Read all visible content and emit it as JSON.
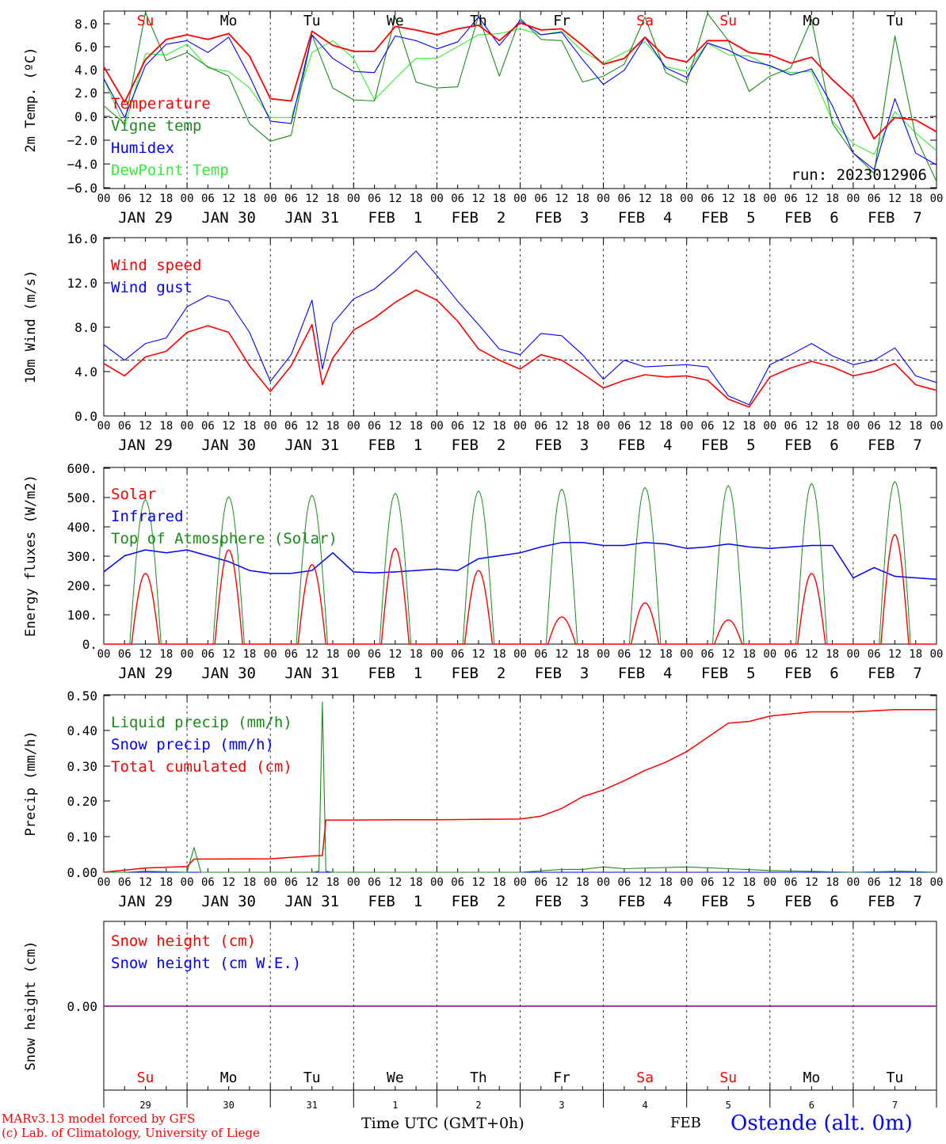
{
  "run_label": "run: 2023012906",
  "model_credit": "MARv3.13 model forced by GFS",
  "lab_credit": "(c) Lab. of Climatology, University of Liege",
  "time_axis_label": "Time UTC (GMT+0h)",
  "month_label": "FEB",
  "station_label": "Ostende (alt. 0m)",
  "hour_ticks": [
    "00",
    "06",
    "12",
    "18"
  ],
  "date_labels": [
    "JAN 29",
    "JAN 30",
    "JAN 31",
    "FEB  1",
    "FEB  2",
    "FEB  3",
    "FEB  4",
    "FEB  5",
    "FEB  6",
    "FEB  7"
  ],
  "day_names": [
    "Su",
    "Mo",
    "Tu",
    "We",
    "Th",
    "Fr",
    "Sa",
    "Su",
    "Mo",
    "Tu"
  ],
  "day_numbers": [
    "29",
    "30",
    "31",
    "1",
    "2",
    "3",
    "4",
    "5",
    "6",
    "7"
  ],
  "colors": {
    "red": "#ff0000",
    "green": "#1a8a1a",
    "blue": "#0000ff",
    "light_green": "#33ee33",
    "purple": "#800080",
    "weekend": "#ff0000",
    "weekday": "#000000"
  },
  "chart_data": [
    {
      "type": "line",
      "ylabel": "2m Temp. (ºC)",
      "ylim": [
        -6,
        9
      ],
      "yticks": [
        "8.0",
        "6.0",
        "4.0",
        "2.0",
        "0.0",
        "−2.0",
        "−4.0",
        "−6.0"
      ],
      "xlim_hours": [
        0,
        240
      ],
      "ref_line": 0,
      "series": [
        {
          "name": "Temperature",
          "color": "#ff0000",
          "x": [
            0,
            6,
            12,
            18,
            24,
            30,
            36,
            42,
            48,
            54,
            60,
            66,
            72,
            78,
            84,
            90,
            96,
            102,
            108,
            114,
            120,
            126,
            132,
            138,
            144,
            150,
            156,
            162,
            168,
            174,
            180,
            186,
            192,
            198,
            204,
            210,
            216,
            222,
            228,
            234,
            240
          ],
          "y": [
            4.3,
            1.3,
            4.9,
            6.6,
            7.0,
            6.6,
            7.1,
            5.2,
            1.6,
            1.4,
            7.3,
            6.1,
            5.6,
            5.6,
            7.7,
            7.4,
            7.0,
            7.5,
            7.8,
            6.5,
            8.0,
            7.4,
            7.5,
            6.1,
            4.5,
            5.0,
            6.8,
            5.1,
            4.7,
            6.5,
            6.5,
            5.5,
            5.3,
            4.6,
            5.1,
            3.2,
            1.6,
            -1.8,
            0.0,
            -0.2,
            -1.2
          ]
        },
        {
          "name": "Vigne temp",
          "color": "#1a8a1a",
          "x": [
            0,
            6,
            12,
            18,
            24,
            30,
            36,
            42,
            48,
            54,
            60,
            66,
            72,
            78,
            84,
            90,
            96,
            102,
            108,
            114,
            120,
            126,
            132,
            138,
            144,
            150,
            156,
            162,
            168,
            174,
            180,
            186,
            192,
            198,
            204,
            210,
            216,
            222,
            228,
            234,
            240
          ],
          "y": [
            1.0,
            -0.5,
            8.9,
            4.8,
            5.5,
            4.3,
            3.5,
            -0.5,
            -2.0,
            -1.5,
            7.0,
            2.5,
            1.5,
            1.4,
            8.5,
            3.0,
            2.5,
            2.6,
            8.6,
            3.5,
            8.4,
            6.6,
            6.5,
            3.0,
            3.5,
            4.5,
            8.5,
            3.8,
            2.9,
            8.8,
            6.5,
            2.2,
            3.5,
            4.2,
            8.3,
            -0.5,
            -3.0,
            -4.7,
            6.9,
            -1.6,
            -5.4
          ]
        },
        {
          "name": "Humidex",
          "color": "#0000ff",
          "x": [
            0,
            6,
            12,
            18,
            24,
            30,
            36,
            42,
            48,
            54,
            60,
            66,
            72,
            78,
            84,
            90,
            96,
            102,
            108,
            114,
            120,
            126,
            132,
            138,
            144,
            150,
            156,
            162,
            168,
            174,
            180,
            186,
            192,
            198,
            204,
            210,
            216,
            222,
            228,
            234,
            240
          ],
          "y": [
            3.3,
            0.0,
            4.4,
            6.2,
            6.5,
            5.5,
            6.8,
            3.5,
            -0.3,
            -0.5,
            7.0,
            5.0,
            3.9,
            3.8,
            6.9,
            6.5,
            5.8,
            6.4,
            8.5,
            6.1,
            8.2,
            7.0,
            7.2,
            4.9,
            2.8,
            4.0,
            6.8,
            4.2,
            3.4,
            6.3,
            5.7,
            4.8,
            4.4,
            3.6,
            4.1,
            1.0,
            -3.0,
            -4.4,
            1.6,
            -3.0,
            -4.0
          ]
        },
        {
          "name": "DewPoint Temp",
          "color": "#33ee33",
          "x": [
            0,
            6,
            12,
            18,
            24,
            30,
            36,
            42,
            48,
            54,
            60,
            66,
            72,
            78,
            84,
            90,
            96,
            102,
            108,
            114,
            120,
            126,
            132,
            138,
            144,
            150,
            156,
            162,
            168,
            174,
            180,
            186,
            192,
            198,
            204,
            210,
            216,
            222,
            228,
            234,
            240
          ],
          "y": [
            3.3,
            -0.8,
            5.4,
            5.3,
            6.2,
            4.2,
            3.9,
            2.5,
            0.0,
            0.0,
            5.5,
            6.5,
            5.0,
            1.5,
            3.3,
            5.0,
            5.0,
            6.0,
            7.0,
            7.1,
            7.5,
            7.0,
            7.3,
            5.6,
            4.6,
            5.5,
            6.4,
            4.3,
            3.9,
            6.3,
            5.3,
            5.2,
            4.3,
            3.8,
            3.9,
            -0.3,
            -2.2,
            -3.1,
            0.5,
            -1.3,
            -2.8
          ]
        }
      ]
    },
    {
      "type": "line",
      "ylabel": "10m Wind (m/s)",
      "ylim": [
        0,
        16
      ],
      "yticks": [
        "16.0",
        "12.0",
        "8.0",
        "4.0",
        "0.0"
      ],
      "xlim_hours": [
        0,
        240
      ],
      "ref_line": 5,
      "series": [
        {
          "name": "Wind speed",
          "color": "#ff0000",
          "x": [
            0,
            6,
            12,
            18,
            24,
            30,
            36,
            42,
            48,
            54,
            60,
            63,
            66,
            72,
            78,
            84,
            90,
            96,
            102,
            108,
            114,
            120,
            126,
            132,
            138,
            144,
            150,
            156,
            162,
            168,
            174,
            180,
            186,
            192,
            198,
            204,
            210,
            216,
            222,
            228,
            234,
            240
          ],
          "y": [
            4.7,
            3.6,
            5.3,
            5.8,
            7.5,
            8.1,
            7.5,
            4.5,
            2.2,
            4.5,
            8.2,
            2.8,
            5.2,
            7.7,
            8.8,
            10.2,
            11.3,
            10.4,
            8.5,
            6.0,
            5.0,
            4.2,
            5.5,
            5.0,
            3.8,
            2.5,
            3.2,
            3.7,
            3.5,
            3.6,
            3.2,
            1.5,
            0.8,
            3.5,
            4.3,
            4.9,
            4.4,
            3.6,
            4.0,
            4.7,
            2.8,
            2.3
          ]
        },
        {
          "name": "Wind gust",
          "color": "#0000ff",
          "x": [
            0,
            6,
            12,
            18,
            24,
            30,
            36,
            42,
            48,
            54,
            60,
            63,
            66,
            72,
            78,
            84,
            90,
            96,
            102,
            108,
            114,
            120,
            126,
            132,
            138,
            144,
            150,
            156,
            162,
            168,
            174,
            180,
            186,
            192,
            198,
            204,
            210,
            216,
            222,
            228,
            234,
            240
          ],
          "y": [
            6.4,
            5.0,
            6.5,
            7.0,
            9.8,
            10.8,
            10.3,
            7.5,
            3.1,
            5.5,
            10.4,
            4.2,
            8.3,
            10.5,
            11.4,
            13.0,
            14.8,
            12.6,
            10.3,
            8.2,
            6.0,
            5.5,
            7.4,
            7.2,
            5.5,
            3.3,
            5.0,
            4.4,
            4.5,
            4.6,
            4.4,
            1.8,
            1.0,
            4.6,
            5.5,
            6.5,
            5.4,
            4.6,
            5.0,
            6.1,
            3.6,
            3.0
          ]
        }
      ]
    },
    {
      "type": "line",
      "ylabel": "Energy fluxes (W/m2)",
      "ylim": [
        0,
        600
      ],
      "yticks": [
        "600.",
        "500.",
        "400.",
        "300.",
        "200.",
        "100.",
        "0."
      ],
      "xlim_hours": [
        0,
        240
      ],
      "daily_peaks": {
        "Top of Atmosphere (Solar)": [
          490,
          500,
          505,
          512,
          520,
          526,
          532,
          538,
          545,
          552
        ],
        "Solar": [
          240,
          320,
          270,
          325,
          250,
          92,
          140,
          82,
          240,
          372
        ]
      },
      "series": [
        {
          "name": "Solar",
          "color": "#ff0000"
        },
        {
          "name": "Infrared",
          "color": "#0000ff",
          "x": [
            0,
            6,
            12,
            18,
            24,
            30,
            36,
            42,
            48,
            54,
            60,
            66,
            72,
            78,
            84,
            90,
            96,
            102,
            108,
            114,
            120,
            126,
            132,
            138,
            144,
            150,
            156,
            162,
            168,
            174,
            180,
            186,
            192,
            198,
            204,
            210,
            216,
            222,
            228,
            234,
            240
          ],
          "y": [
            245,
            300,
            320,
            310,
            320,
            300,
            280,
            250,
            240,
            240,
            250,
            310,
            245,
            242,
            245,
            250,
            255,
            250,
            290,
            300,
            310,
            330,
            345,
            345,
            335,
            335,
            345,
            340,
            325,
            330,
            340,
            330,
            325,
            330,
            335,
            335,
            225,
            260,
            230,
            225,
            220
          ]
        },
        {
          "name": "Top of Atmosphere (Solar)",
          "color": "#1a8a1a"
        }
      ]
    },
    {
      "type": "line",
      "ylabel": "Precip (mm/h)",
      "ylim": [
        0,
        0.5
      ],
      "yticks": [
        "0.50",
        "0.40",
        "0.30",
        "0.20",
        "0.10",
        "0.00"
      ],
      "xlim_hours": [
        0,
        240
      ],
      "series": [
        {
          "name": "Liquid precip (mm/h)",
          "color": "#1a8a1a",
          "x": [
            0,
            6,
            12,
            24,
            26,
            28,
            30,
            48,
            60,
            62,
            63,
            64,
            66,
            120,
            132,
            138,
            144,
            150,
            168,
            180,
            192,
            216,
            230,
            240
          ],
          "y": [
            0.0,
            0.0,
            0.003,
            0.0,
            0.07,
            0.0,
            0.0,
            0.0,
            0.0,
            0.003,
            0.48,
            0.003,
            0.0,
            0.0,
            0.008,
            0.008,
            0.015,
            0.01,
            0.015,
            0.01,
            0.005,
            0.0,
            0.003,
            0.0
          ]
        },
        {
          "name": "Snow precip (mm/h)",
          "color": "#0000ff",
          "x": [
            0,
            240
          ],
          "y": [
            0,
            0
          ]
        },
        {
          "name": "Total cumulated (cm)",
          "color": "#ff0000",
          "x": [
            0,
            12,
            24,
            26,
            48,
            60,
            63,
            64,
            72,
            84,
            96,
            108,
            120,
            126,
            132,
            138,
            144,
            150,
            156,
            162,
            168,
            174,
            180,
            186,
            192,
            204,
            216,
            228,
            240
          ],
          "y": [
            0.0,
            0.012,
            0.016,
            0.037,
            0.038,
            0.046,
            0.047,
            0.147,
            0.147,
            0.148,
            0.148,
            0.149,
            0.15,
            0.158,
            0.18,
            0.213,
            0.232,
            0.258,
            0.287,
            0.31,
            0.34,
            0.38,
            0.42,
            0.425,
            0.44,
            0.452,
            0.452,
            0.458,
            0.458
          ]
        }
      ]
    },
    {
      "type": "line",
      "ylabel": "Snow height (cm)",
      "yticks": [
        "0.00"
      ],
      "xlim_hours": [
        0,
        240
      ],
      "series": [
        {
          "name": "Snow height (cm)",
          "color": "#ff0000",
          "x": [
            0,
            240
          ],
          "y": [
            0,
            0
          ]
        },
        {
          "name": "Snow height (cm W.E.)",
          "color": "#0000ff",
          "x": [
            0,
            240
          ],
          "y": [
            0,
            0
          ]
        }
      ]
    }
  ]
}
